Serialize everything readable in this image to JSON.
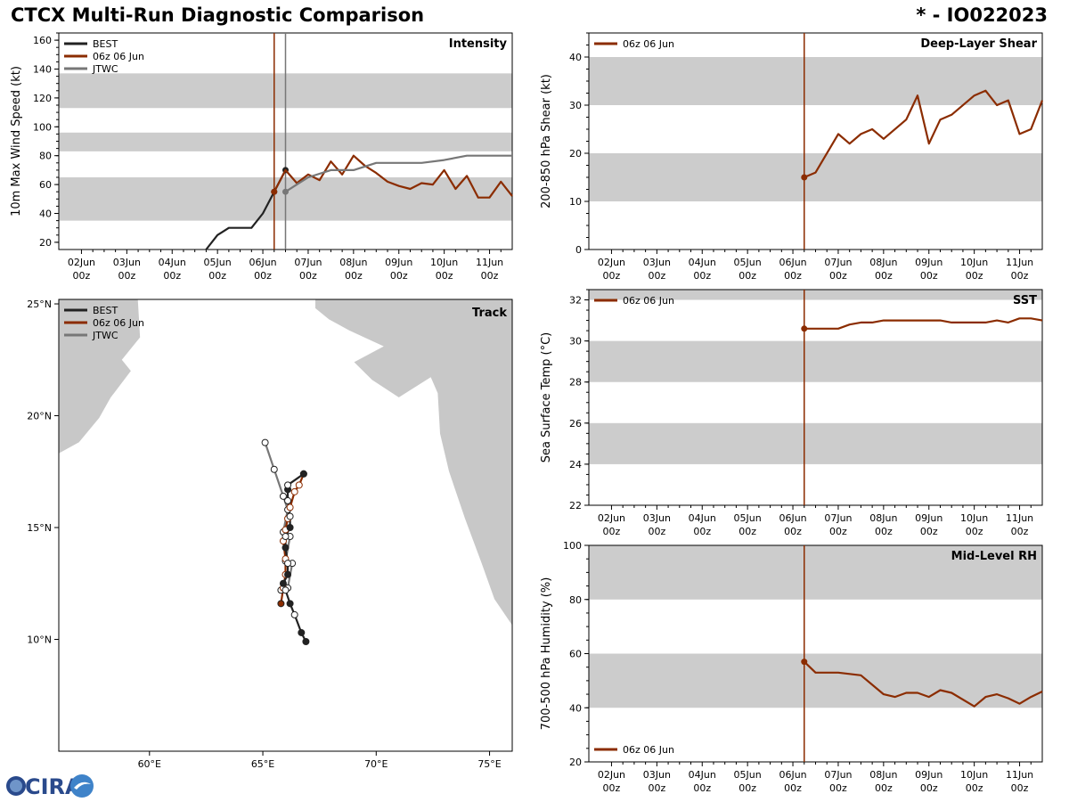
{
  "header": {
    "title": "CTCX Multi-Run Diagnostic Comparison",
    "storm_id": "* - IO022023"
  },
  "colors": {
    "best": "#222222",
    "run": "#8B2C00",
    "jtwc": "#777777",
    "band": "#cccccc",
    "land": "#c8c8c8"
  },
  "time_ticks": [
    "02Jun\n00z",
    "03Jun\n00z",
    "04Jun\n00z",
    "05Jun\n00z",
    "06Jun\n00z",
    "07Jun\n00z",
    "08Jun\n00z",
    "09Jun\n00z",
    "10Jun\n00z",
    "11Jun\n00z"
  ],
  "logo": {
    "text": "CIRA"
  },
  "chart_data": [
    {
      "id": "intensity",
      "type": "line",
      "title": "Intensity",
      "ylabel": "10m Max Wind Speed (kt)",
      "xlim": [
        -0.5,
        9.5
      ],
      "ylim": [
        15,
        165
      ],
      "yticks": [
        20,
        40,
        60,
        80,
        100,
        120,
        140,
        160
      ],
      "bands": [
        [
          35,
          65
        ],
        [
          83,
          96
        ],
        [
          113,
          137
        ]
      ],
      "vlines": [
        {
          "x": 4.25,
          "series": "run"
        },
        {
          "x": 4.5,
          "series": "jtwc"
        }
      ],
      "legend": [
        "BEST",
        "06z 06 Jun",
        "JTWC"
      ],
      "series": [
        {
          "name": "BEST",
          "key": "best",
          "x": [
            2.75,
            3.0,
            3.25,
            3.5,
            3.75,
            4.0,
            4.25,
            4.5
          ],
          "y": [
            15,
            25,
            30,
            30,
            30,
            40,
            55,
            70
          ],
          "markers": [
            [
              4.25,
              55
            ],
            [
              4.5,
              70
            ]
          ]
        },
        {
          "name": "06z 06 Jun",
          "key": "run",
          "x": [
            4.25,
            4.5,
            4.75,
            5.0,
            5.25,
            5.5,
            5.75,
            6.0,
            6.25,
            6.5,
            6.75,
            7.0,
            7.25,
            7.5,
            7.75,
            8.0,
            8.25,
            8.5,
            8.75,
            9.0,
            9.25,
            9.5
          ],
          "y": [
            55,
            70,
            61,
            67,
            63,
            76,
            67,
            80,
            73,
            68,
            62,
            59,
            57,
            61,
            60,
            70,
            57,
            66,
            51,
            51,
            62,
            52
          ],
          "markers": [
            [
              4.25,
              55
            ]
          ]
        },
        {
          "name": "JTWC",
          "key": "jtwc",
          "x": [
            4.5,
            4.75,
            5.0,
            5.5,
            6.0,
            6.5,
            7.0,
            7.5,
            8.0,
            8.5,
            9.0,
            9.5
          ],
          "y": [
            55,
            60,
            65,
            70,
            70,
            75,
            75,
            75,
            77,
            80,
            80,
            80
          ],
          "markers": [
            [
              4.5,
              55
            ]
          ]
        }
      ]
    },
    {
      "id": "shear",
      "type": "line",
      "title": "Deep-Layer Shear",
      "ylabel": "200-850 hPa Shear (kt)",
      "xlim": [
        -0.5,
        9.5
      ],
      "ylim": [
        0,
        45
      ],
      "yticks": [
        0,
        10,
        20,
        30,
        40
      ],
      "bands": [
        [
          10,
          20
        ],
        [
          30,
          40
        ]
      ],
      "vlines": [
        {
          "x": 4.25,
          "series": "run"
        }
      ],
      "legend": [
        "06z 06 Jun"
      ],
      "series": [
        {
          "name": "06z 06 Jun",
          "key": "run",
          "x": [
            4.25,
            4.5,
            5.0,
            5.25,
            5.5,
            5.75,
            6.0,
            6.5,
            6.75,
            7.0,
            7.25,
            7.5,
            8.0,
            8.25,
            8.5,
            8.75,
            9.0,
            9.25,
            9.5
          ],
          "y": [
            15,
            16,
            24,
            22,
            24,
            25,
            23,
            27,
            32,
            22,
            27,
            28,
            32,
            33,
            30,
            31,
            24,
            25,
            31
          ],
          "markers": [
            [
              4.25,
              15
            ]
          ]
        }
      ]
    },
    {
      "id": "sst",
      "type": "line",
      "title": "SST",
      "ylabel": "Sea Surface Temp (°C)",
      "xlim": [
        -0.5,
        9.5
      ],
      "ylim": [
        22,
        32.5
      ],
      "yticks": [
        22,
        24,
        26,
        28,
        30,
        32
      ],
      "bands": [
        [
          24,
          26
        ],
        [
          28,
          30
        ],
        [
          32,
          32.5
        ]
      ],
      "vlines": [
        {
          "x": 4.25,
          "series": "run"
        }
      ],
      "legend": [
        "06z 06 Jun"
      ],
      "series": [
        {
          "name": "06z 06 Jun",
          "key": "run",
          "x": [
            4.25,
            4.5,
            5.0,
            5.25,
            5.5,
            5.75,
            6.0,
            6.5,
            7.0,
            7.25,
            7.5,
            8.0,
            8.25,
            8.5,
            8.75,
            9.0,
            9.25,
            9.5
          ],
          "y": [
            30.6,
            30.6,
            30.6,
            30.8,
            30.9,
            30.9,
            31.0,
            31.0,
            31.0,
            31.0,
            30.9,
            30.9,
            30.9,
            31.0,
            30.9,
            31.1,
            31.1,
            31.0
          ],
          "markers": [
            [
              4.25,
              30.6
            ]
          ]
        }
      ]
    },
    {
      "id": "rh",
      "type": "line",
      "title": "Mid-Level RH",
      "ylabel": "700-500 hPa Humidity (%)",
      "xlim": [
        -0.5,
        9.5
      ],
      "ylim": [
        20,
        100
      ],
      "yticks": [
        20,
        40,
        60,
        80,
        100
      ],
      "bands": [
        [
          40,
          60
        ],
        [
          80,
          100
        ]
      ],
      "vlines": [
        {
          "x": 4.25,
          "series": "run"
        }
      ],
      "legend": [
        "06z 06 Jun"
      ],
      "series": [
        {
          "name": "06z 06 Jun",
          "key": "run",
          "x": [
            4.25,
            4.5,
            5.0,
            5.5,
            6.0,
            6.25,
            6.5,
            6.75,
            7.0,
            7.25,
            7.5,
            8.0,
            8.25,
            8.5,
            8.75,
            9.0,
            9.25,
            9.5
          ],
          "y": [
            57,
            53,
            53,
            52,
            45,
            44,
            45.5,
            45.5,
            44,
            46.5,
            45.5,
            40.5,
            44,
            45,
            43.5,
            41.5,
            44,
            46
          ],
          "markers": [
            [
              4.25,
              57
            ]
          ]
        }
      ]
    },
    {
      "id": "track",
      "type": "scatter",
      "title": "Track",
      "xlim": [
        56,
        76
      ],
      "ylim": [
        5,
        25.2
      ],
      "xticks": [
        [
          60,
          "60°E"
        ],
        [
          65,
          "65°E"
        ],
        [
          70,
          "70°E"
        ],
        [
          75,
          "75°E"
        ]
      ],
      "yticks": [
        [
          10,
          "10°N"
        ],
        [
          15,
          "15°N"
        ],
        [
          20,
          "20°N"
        ],
        [
          25,
          "25°N"
        ]
      ],
      "legend": [
        "BEST",
        "06z 06 Jun",
        "JTWC"
      ],
      "series": [
        {
          "name": "BEST",
          "key": "best",
          "lon": [
            66.9,
            66.7,
            66.4,
            66.2,
            66.0,
            65.9,
            66.1,
            66.1,
            66.0,
            66.0,
            66.2,
            66.2,
            66.1,
            66.1,
            66.1,
            66.8
          ],
          "lat": [
            9.9,
            10.3,
            11.1,
            11.6,
            12.2,
            12.5,
            12.9,
            13.4,
            14.1,
            14.6,
            15.0,
            15.5,
            16.2,
            16.7,
            16.9,
            17.4
          ],
          "filled": [
            true,
            true,
            false,
            true,
            false,
            true,
            true,
            false,
            true,
            false,
            true,
            false,
            false,
            true,
            false,
            true
          ]
        },
        {
          "name": "06z 06 Jun",
          "key": "run",
          "lon": [
            66.8,
            66.6,
            66.4,
            66.2,
            66.1,
            66.0,
            65.9,
            66.0,
            66.0,
            65.9,
            65.8
          ],
          "lat": [
            17.4,
            16.9,
            16.6,
            15.9,
            15.4,
            14.9,
            14.4,
            13.6,
            12.9,
            12.3,
            11.6
          ],
          "filled": [
            true,
            false,
            false,
            false,
            false,
            false,
            false,
            false,
            false,
            false,
            true
          ]
        },
        {
          "name": "JTWC",
          "key": "jtwc",
          "lon": [
            65.1,
            65.5,
            65.9,
            66.1,
            65.9,
            66.2,
            66.0,
            66.3,
            66.1,
            65.8
          ],
          "lat": [
            18.8,
            17.6,
            16.4,
            15.8,
            14.8,
            14.6,
            13.5,
            13.4,
            12.3,
            12.2
          ],
          "filled": [
            false,
            false,
            false,
            false,
            false,
            false,
            false,
            false,
            false,
            false
          ]
        }
      ]
    }
  ]
}
